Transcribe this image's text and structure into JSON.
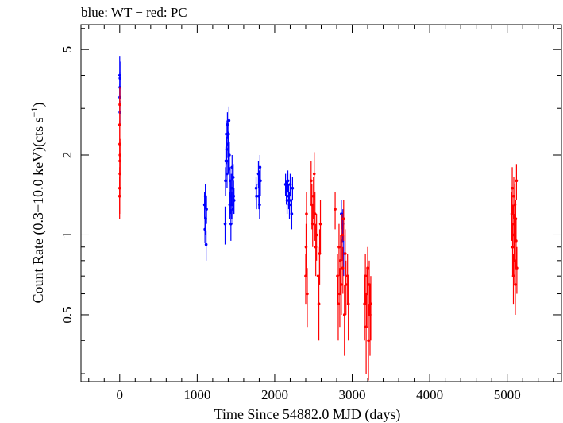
{
  "chart_data": {
    "type": "scatter",
    "title": "blue: WT − red: PC",
    "xlabel": "Time Since 54882.0 MJD (days)",
    "ylabel_main": "Count Rate (0.3−10.0 keV)(cts s",
    "ylabel_sup": "−1",
    "ylabel_close": ")",
    "x_scale": "linear",
    "y_scale": "log",
    "xlim": [
      -500,
      5700
    ],
    "ylim": [
      0.28,
      6.2
    ],
    "xticks": [
      0,
      1000,
      2000,
      3000,
      4000,
      5000
    ],
    "xtick_labels": [
      "0",
      "1000",
      "2000",
      "3000",
      "4000",
      "5000"
    ],
    "yticks": [
      0.5,
      1,
      2,
      5
    ],
    "ytick_labels": [
      "0.5",
      "1",
      "2",
      "5"
    ],
    "grid": false,
    "series": [
      {
        "name": "WT",
        "color": "#0000ff",
        "points": [
          [
            0,
            4.0,
            0.7
          ],
          [
            2,
            3.6,
            0.5
          ],
          [
            4,
            3.9,
            0.6
          ],
          [
            1,
            3.3,
            0.4
          ],
          [
            3,
            2.9,
            0.3
          ],
          [
            1095,
            1.3,
            0.15
          ],
          [
            1100,
            1.05,
            0.12
          ],
          [
            1105,
            1.4,
            0.15
          ],
          [
            1110,
            1.15,
            0.15
          ],
          [
            1115,
            0.92,
            0.12
          ],
          [
            1120,
            1.25,
            0.15
          ],
          [
            1360,
            1.1,
            0.18
          ],
          [
            1365,
            1.6,
            0.2
          ],
          [
            1370,
            1.9,
            0.25
          ],
          [
            1375,
            2.4,
            0.3
          ],
          [
            1380,
            2.1,
            0.25
          ],
          [
            1385,
            1.7,
            0.2
          ],
          [
            1390,
            2.6,
            0.3
          ],
          [
            1395,
            2.2,
            0.25
          ],
          [
            1400,
            1.9,
            0.2
          ],
          [
            1405,
            2.4,
            0.3
          ],
          [
            1410,
            2.7,
            0.35
          ],
          [
            1415,
            2.0,
            0.25
          ],
          [
            1420,
            1.3,
            0.15
          ],
          [
            1425,
            1.6,
            0.2
          ],
          [
            1430,
            1.4,
            0.2
          ],
          [
            1435,
            1.1,
            0.15
          ],
          [
            1440,
            1.5,
            0.2
          ],
          [
            1445,
            1.3,
            0.15
          ],
          [
            1450,
            1.8,
            0.2
          ],
          [
            1455,
            1.5,
            0.2
          ],
          [
            1460,
            1.25,
            0.15
          ],
          [
            1465,
            1.65,
            0.2
          ],
          [
            1470,
            1.4,
            0.2
          ],
          [
            1475,
            1.35,
            0.15
          ],
          [
            1760,
            1.5,
            0.15
          ],
          [
            1765,
            1.4,
            0.15
          ],
          [
            1790,
            1.7,
            0.2
          ],
          [
            1795,
            1.4,
            0.15
          ],
          [
            1800,
            1.55,
            0.2
          ],
          [
            1805,
            1.3,
            0.15
          ],
          [
            1810,
            1.8,
            0.2
          ],
          [
            1815,
            1.6,
            0.2
          ],
          [
            2140,
            1.55,
            0.15
          ],
          [
            2150,
            1.45,
            0.15
          ],
          [
            2160,
            1.35,
            0.15
          ],
          [
            2170,
            1.6,
            0.15
          ],
          [
            2180,
            1.4,
            0.15
          ],
          [
            2190,
            1.3,
            0.15
          ],
          [
            2200,
            1.55,
            0.15
          ],
          [
            2210,
            1.35,
            0.15
          ],
          [
            2220,
            1.2,
            0.15
          ],
          [
            2230,
            1.5,
            0.15
          ],
          [
            2860,
            1.2,
            0.15
          ],
          [
            2870,
            0.95,
            0.15
          ],
          [
            2880,
            1.1,
            0.15
          ],
          [
            2890,
            0.85,
            0.15
          ]
        ]
      },
      {
        "name": "PC",
        "color": "#ff0000",
        "points": [
          [
            0,
            2.6,
            0.7
          ],
          [
            1,
            2.2,
            0.5
          ],
          [
            2,
            1.9,
            0.4
          ],
          [
            3,
            1.7,
            0.3
          ],
          [
            -1,
            1.4,
            0.25
          ],
          [
            4,
            2.0,
            0.3
          ],
          [
            0,
            1.5,
            0.3
          ],
          [
            2,
            3.1,
            0.5
          ],
          [
            2400,
            0.7,
            0.15
          ],
          [
            2405,
            0.9,
            0.2
          ],
          [
            2410,
            1.2,
            0.25
          ],
          [
            2420,
            0.6,
            0.15
          ],
          [
            2470,
            1.6,
            0.3
          ],
          [
            2480,
            1.3,
            0.25
          ],
          [
            2490,
            1.1,
            0.2
          ],
          [
            2500,
            1.4,
            0.25
          ],
          [
            2510,
            1.7,
            0.35
          ],
          [
            2520,
            1.2,
            0.25
          ],
          [
            2530,
            0.9,
            0.2
          ],
          [
            2540,
            1.0,
            0.2
          ],
          [
            2560,
            0.7,
            0.2
          ],
          [
            2570,
            0.55,
            0.15
          ],
          [
            2580,
            0.85,
            0.2
          ],
          [
            2590,
            1.1,
            0.25
          ],
          [
            2780,
            1.25,
            0.2
          ],
          [
            2810,
            0.7,
            0.15
          ],
          [
            2820,
            0.55,
            0.15
          ],
          [
            2830,
            0.9,
            0.2
          ],
          [
            2840,
            0.6,
            0.15
          ],
          [
            2850,
            0.8,
            0.2
          ],
          [
            2860,
            0.65,
            0.15
          ],
          [
            2870,
            1.0,
            0.2
          ],
          [
            2880,
            0.75,
            0.15
          ],
          [
            2890,
            1.15,
            0.2
          ],
          [
            2900,
            0.5,
            0.15
          ],
          [
            2910,
            0.85,
            0.2
          ],
          [
            2920,
            0.65,
            0.15
          ],
          [
            2940,
            0.7,
            0.15
          ],
          [
            2950,
            0.55,
            0.15
          ],
          [
            3160,
            0.55,
            0.15
          ],
          [
            3170,
            0.7,
            0.15
          ],
          [
            3180,
            0.45,
            0.15
          ],
          [
            3190,
            0.6,
            0.15
          ],
          [
            3200,
            0.75,
            0.15
          ],
          [
            3210,
            0.4,
            0.15
          ],
          [
            3220,
            0.65,
            0.15
          ],
          [
            3230,
            0.5,
            0.15
          ],
          [
            3240,
            0.55,
            0.15
          ],
          [
            5060,
            1.2,
            0.25
          ],
          [
            5065,
            1.5,
            0.3
          ],
          [
            5070,
            0.9,
            0.2
          ],
          [
            5075,
            1.1,
            0.2
          ],
          [
            5080,
            0.7,
            0.15
          ],
          [
            5085,
            1.4,
            0.25
          ],
          [
            5090,
            1.0,
            0.2
          ],
          [
            5095,
            0.8,
            0.15
          ],
          [
            5100,
            1.3,
            0.25
          ],
          [
            5105,
            0.65,
            0.15
          ],
          [
            5110,
            1.15,
            0.2
          ],
          [
            5115,
            0.95,
            0.2
          ],
          [
            5120,
            1.6,
            0.25
          ],
          [
            5125,
            0.75,
            0.15
          ]
        ]
      }
    ]
  }
}
